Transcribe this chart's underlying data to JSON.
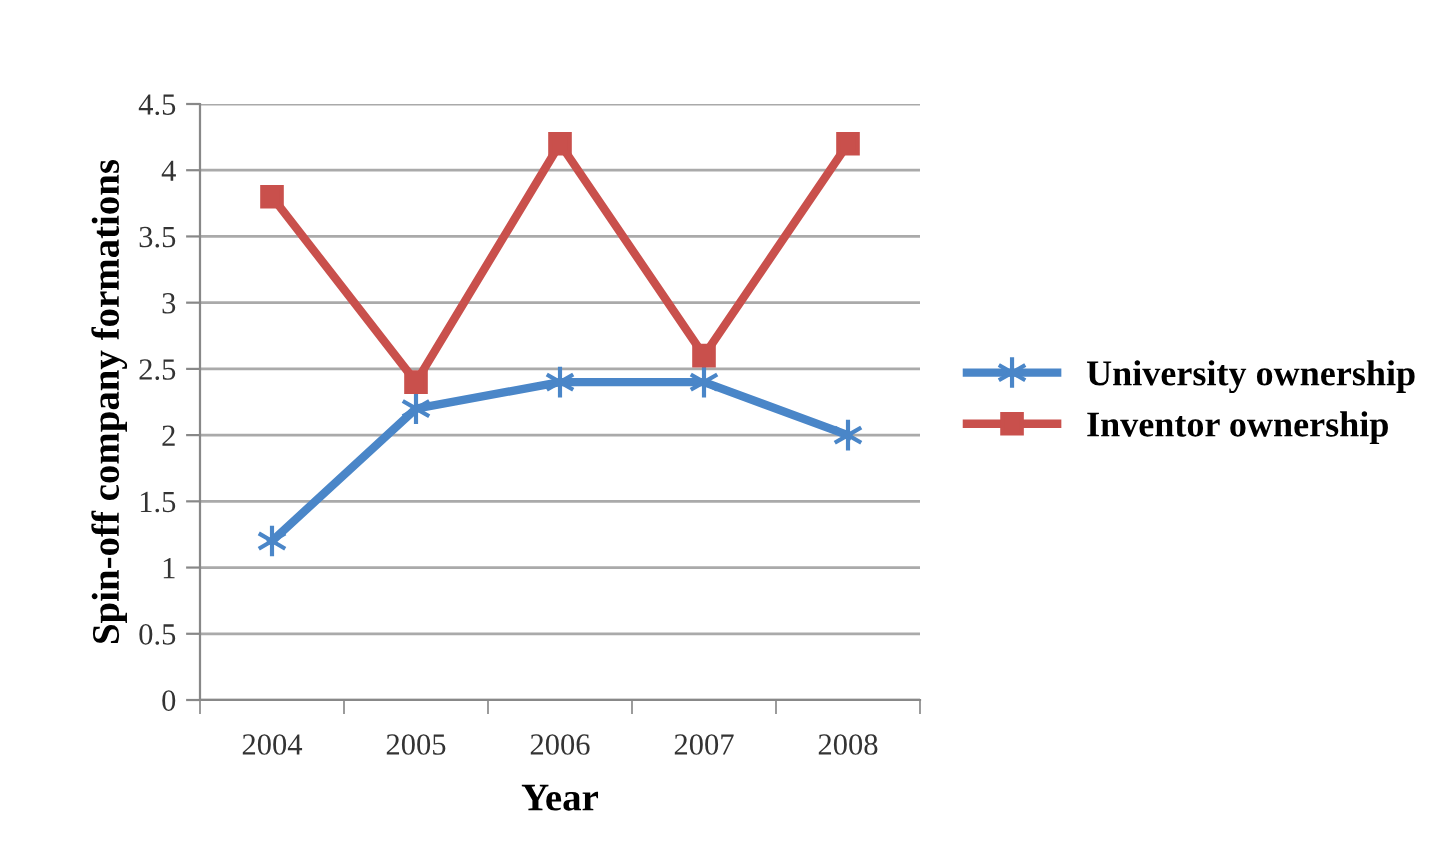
{
  "chart_data": {
    "type": "line",
    "xlabel": "Year",
    "ylabel": "Spin-off company formations",
    "categories": [
      "2004",
      "2005",
      "2006",
      "2007",
      "2008"
    ],
    "series": [
      {
        "name": "University ownership",
        "color": "#4a86c8",
        "marker": "cross",
        "values": [
          1.2,
          2.2,
          2.4,
          2.4,
          2.0
        ]
      },
      {
        "name": "Inventor ownership",
        "color": "#c9504c",
        "marker": "square",
        "values": [
          3.8,
          2.4,
          4.2,
          2.6,
          4.2
        ]
      }
    ],
    "ylim": [
      0,
      4.5
    ],
    "yticks": [
      0,
      0.5,
      1,
      1.5,
      2,
      2.5,
      3,
      3.5,
      4,
      4.5
    ],
    "grid": "y",
    "legend": "right"
  }
}
